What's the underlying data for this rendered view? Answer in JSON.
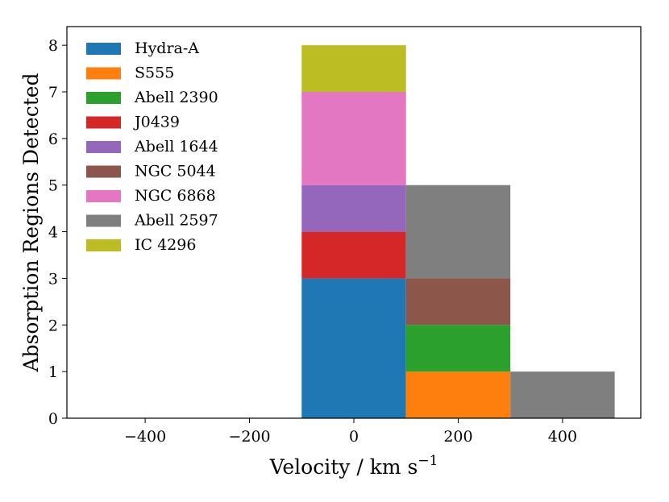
{
  "chart_data": {
    "type": "bar",
    "subtype": "stacked-histogram",
    "title": "",
    "xlabel": "Velocity / km s",
    "xlabel_superscript": "−1",
    "ylabel": "Absorption Regions Detected",
    "xlim": [
      -550,
      550
    ],
    "ylim": [
      0,
      8.4
    ],
    "xticks": [
      -400,
      -200,
      0,
      200,
      400
    ],
    "xtick_labels": [
      "−400",
      "−200",
      "0",
      "200",
      "400"
    ],
    "yticks": [
      0,
      1,
      2,
      3,
      4,
      5,
      6,
      7,
      8
    ],
    "ytick_labels": [
      "0",
      "1",
      "2",
      "3",
      "4",
      "5",
      "6",
      "7",
      "8"
    ],
    "bin_edges": [
      -100,
      100,
      300,
      500
    ],
    "grid": false,
    "legend_position": "top-left",
    "series": [
      {
        "name": "Hydra-A",
        "color": "#1f77b4",
        "values": [
          3,
          0,
          0
        ]
      },
      {
        "name": "S555",
        "color": "#ff7f0e",
        "values": [
          0,
          1,
          0
        ]
      },
      {
        "name": "Abell 2390",
        "color": "#2ca02c",
        "values": [
          0,
          1,
          0
        ]
      },
      {
        "name": "J0439",
        "color": "#d62728",
        "values": [
          1,
          0,
          0
        ]
      },
      {
        "name": "Abell 1644",
        "color": "#9467bd",
        "values": [
          1,
          0,
          0
        ]
      },
      {
        "name": "NGC 5044",
        "color": "#8c564b",
        "values": [
          0,
          1,
          0
        ]
      },
      {
        "name": "NGC 6868",
        "color": "#e377c2",
        "values": [
          2,
          0,
          0
        ]
      },
      {
        "name": "Abell 2597",
        "color": "#7f7f7f",
        "values": [
          0,
          2,
          1
        ]
      },
      {
        "name": "IC 4296",
        "color": "#bcbd22",
        "values": [
          1,
          0,
          0
        ]
      }
    ]
  }
}
